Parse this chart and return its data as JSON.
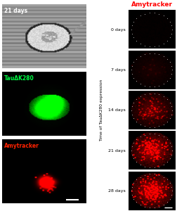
{
  "title_left_top": "21 days",
  "label_green": "TauΔK280",
  "label_red_left": "Amytracker",
  "title_right": "Amytracker",
  "ylabel_right": "Time of TauΔK280 expression",
  "time_labels": [
    "0 days",
    "7 days",
    "14 days",
    "21 days",
    "28 days"
  ],
  "fig_bg": "#ffffff",
  "panel_bg_gray": "#888888",
  "panel_bg_black": "#000000",
  "red_color": "#ff2200",
  "green_color": "#00ff44",
  "white": "#ffffff",
  "red_intensities": [
    0.04,
    0.12,
    0.45,
    0.8,
    0.88
  ]
}
